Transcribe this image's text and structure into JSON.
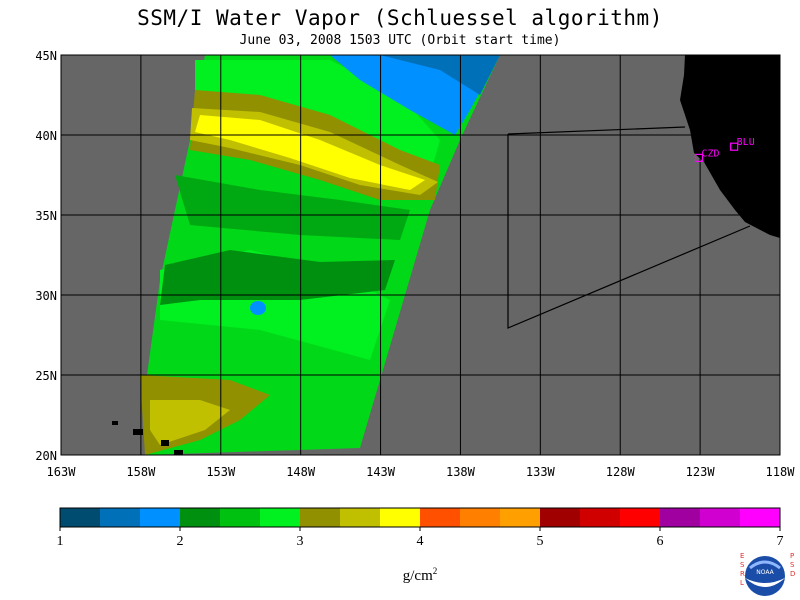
{
  "title": "SSM/I Water Vapor (Schluessel algorithm)",
  "subtitle": "June 03, 2008  1503 UTC  (Orbit start time)",
  "map": {
    "lat_labels": [
      "45N",
      "40N",
      "35N",
      "30N",
      "25N",
      "20N"
    ],
    "lon_labels": [
      "163W",
      "158W",
      "153W",
      "148W",
      "143W",
      "138W",
      "133W",
      "128W",
      "123W",
      "118W"
    ],
    "lat_range": [
      20,
      45
    ],
    "lon_range": [
      -163,
      -118
    ],
    "ocean_color": "#666666",
    "land_color": "#000000",
    "station_color": "#ff00ff",
    "stations": [
      {
        "name": "CZD",
        "lon": -123.1,
        "lat": 38.6
      },
      {
        "name": "BLU",
        "lon": -120.9,
        "lat": 39.3
      }
    ]
  },
  "colorbar": {
    "ticks": [
      "1",
      "2",
      "3",
      "4",
      "5",
      "6",
      "7"
    ],
    "units": "g/cm",
    "units_sup": "2",
    "colors": [
      "#004c70",
      "#0070b8",
      "#0090ff",
      "#009010",
      "#00c010",
      "#00f020",
      "#909000",
      "#c0c000",
      "#ffff00",
      "#ff5000",
      "#ff8000",
      "#ffa000",
      "#a00000",
      "#d00000",
      "#ff0000",
      "#a000a0",
      "#d000d0",
      "#ff00ff"
    ]
  },
  "logo": {
    "left_text": "ESRL",
    "right_text": "PSD",
    "center_text": "NOAA",
    "icon": "noaa-logo-icon"
  }
}
